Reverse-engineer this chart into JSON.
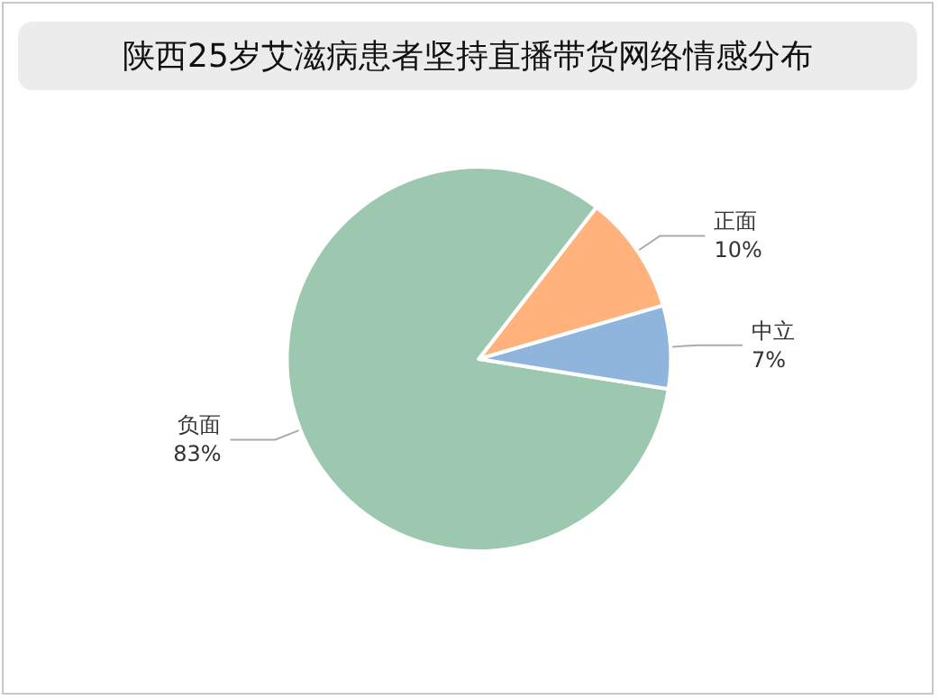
{
  "chart_data": {
    "type": "pie",
    "title": "陕西25岁艾滋病患者坚持直播带货网络情感分布",
    "categories": [
      "负面",
      "正面",
      "中立"
    ],
    "values": [
      83,
      10,
      7
    ],
    "value_labels": [
      "83%",
      "10%",
      "7%"
    ],
    "colors": [
      "#9dc8b0",
      "#ffb27b",
      "#8fb5dd"
    ],
    "legend": false
  }
}
